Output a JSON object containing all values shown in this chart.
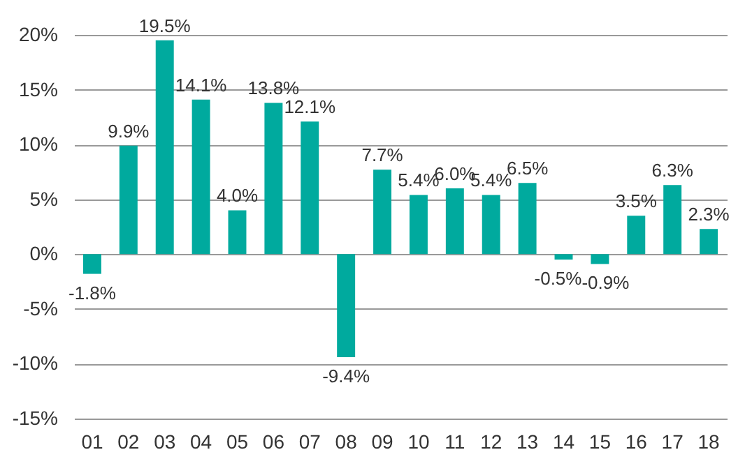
{
  "chart_data": {
    "type": "bar",
    "categories": [
      "01",
      "02",
      "03",
      "04",
      "05",
      "06",
      "07",
      "08",
      "09",
      "10",
      "11",
      "12",
      "13",
      "14",
      "15",
      "16",
      "17",
      "18"
    ],
    "values": [
      -1.8,
      9.9,
      19.5,
      14.1,
      4.0,
      13.8,
      12.1,
      -9.4,
      7.7,
      5.4,
      6.0,
      5.4,
      6.5,
      -0.5,
      -0.9,
      3.5,
      6.3,
      2.3
    ],
    "value_labels": [
      "-1.8%",
      "9.9%",
      "19.5%",
      "14.1%",
      "4.0%",
      "13.8%",
      "12.1%",
      "-9.4%",
      "7.7%",
      "5.4%",
      "6.0%",
      "5.4%",
      "6.5%",
      "-0.5%",
      "-0.9%",
      "3.5%",
      "6.3%",
      "2.3%"
    ],
    "color": "#00aa9e",
    "ylim": [
      -15,
      20
    ],
    "yticks": [
      {
        "value": -15,
        "label": "-15%"
      },
      {
        "value": -10,
        "label": "-10%"
      },
      {
        "value": -5,
        "label": "-5%"
      },
      {
        "value": 0,
        "label": "0%"
      },
      {
        "value": 5,
        "label": "5%"
      },
      {
        "value": 10,
        "label": "10%"
      },
      {
        "value": 15,
        "label": "15%"
      },
      {
        "value": 20,
        "label": "20%"
      }
    ],
    "grid": "y"
  }
}
